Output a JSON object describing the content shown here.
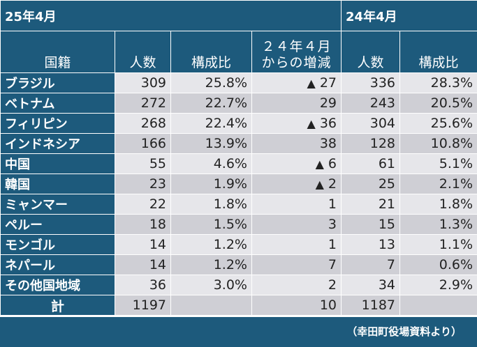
{
  "header": {
    "period_current": "25年4月",
    "period_previous": "24年4月",
    "col_nationality": "国籍",
    "col_count": "人数",
    "col_ratio": "構成比",
    "col_change_line1": "２４年４月",
    "col_change_line2": "からの増減",
    "col_count_prev": "人数",
    "col_ratio_prev": "構成比"
  },
  "decrease_marker": "▲",
  "rows": [
    {
      "name": "ブラジル",
      "count": "309",
      "ratio": "25.8%",
      "change_mark": "▲",
      "change": "27",
      "count_prev": "336",
      "ratio_prev": "28.3%"
    },
    {
      "name": "ベトナム",
      "count": "272",
      "ratio": "22.7%",
      "change_mark": "",
      "change": "29",
      "count_prev": "243",
      "ratio_prev": "20.5%"
    },
    {
      "name": "フィリピン",
      "count": "268",
      "ratio": "22.4%",
      "change_mark": "▲",
      "change": "36",
      "count_prev": "304",
      "ratio_prev": "25.6%"
    },
    {
      "name": "インドネシア",
      "count": "166",
      "ratio": "13.9%",
      "change_mark": "",
      "change": "38",
      "count_prev": "128",
      "ratio_prev": "10.8%"
    },
    {
      "name": "中国",
      "count": "55",
      "ratio": "4.6%",
      "change_mark": "▲",
      "change": "6",
      "count_prev": "61",
      "ratio_prev": "5.1%"
    },
    {
      "name": "韓国",
      "count": "23",
      "ratio": "1.9%",
      "change_mark": "▲",
      "change": "2",
      "count_prev": "25",
      "ratio_prev": "2.1%"
    },
    {
      "name": "ミャンマー",
      "count": "22",
      "ratio": "1.8%",
      "change_mark": "",
      "change": "1",
      "count_prev": "21",
      "ratio_prev": "1.8%"
    },
    {
      "name": "ペルー",
      "count": "18",
      "ratio": "1.5%",
      "change_mark": "",
      "change": "3",
      "count_prev": "15",
      "ratio_prev": "1.3%"
    },
    {
      "name": "モンゴル",
      "count": "14",
      "ratio": "1.2%",
      "change_mark": "",
      "change": "1",
      "count_prev": "13",
      "ratio_prev": "1.1%"
    },
    {
      "name": "ネパール",
      "count": "14",
      "ratio": "1.2%",
      "change_mark": "",
      "change": "7",
      "count_prev": "7",
      "ratio_prev": "0.6%"
    },
    {
      "name": "その他国地域",
      "count": "36",
      "ratio": "3.0%",
      "change_mark": "",
      "change": "2",
      "count_prev": "34",
      "ratio_prev": "2.9%"
    }
  ],
  "total": {
    "label": "計",
    "count": "1197",
    "change": "10",
    "count_prev": "1187"
  },
  "footer": {
    "source": "（幸田町役場資料より）"
  },
  "colors": {
    "header_bg": "#1d5a7c",
    "row_light": "#e6e6ea",
    "row_dark": "#cfcfd5"
  }
}
